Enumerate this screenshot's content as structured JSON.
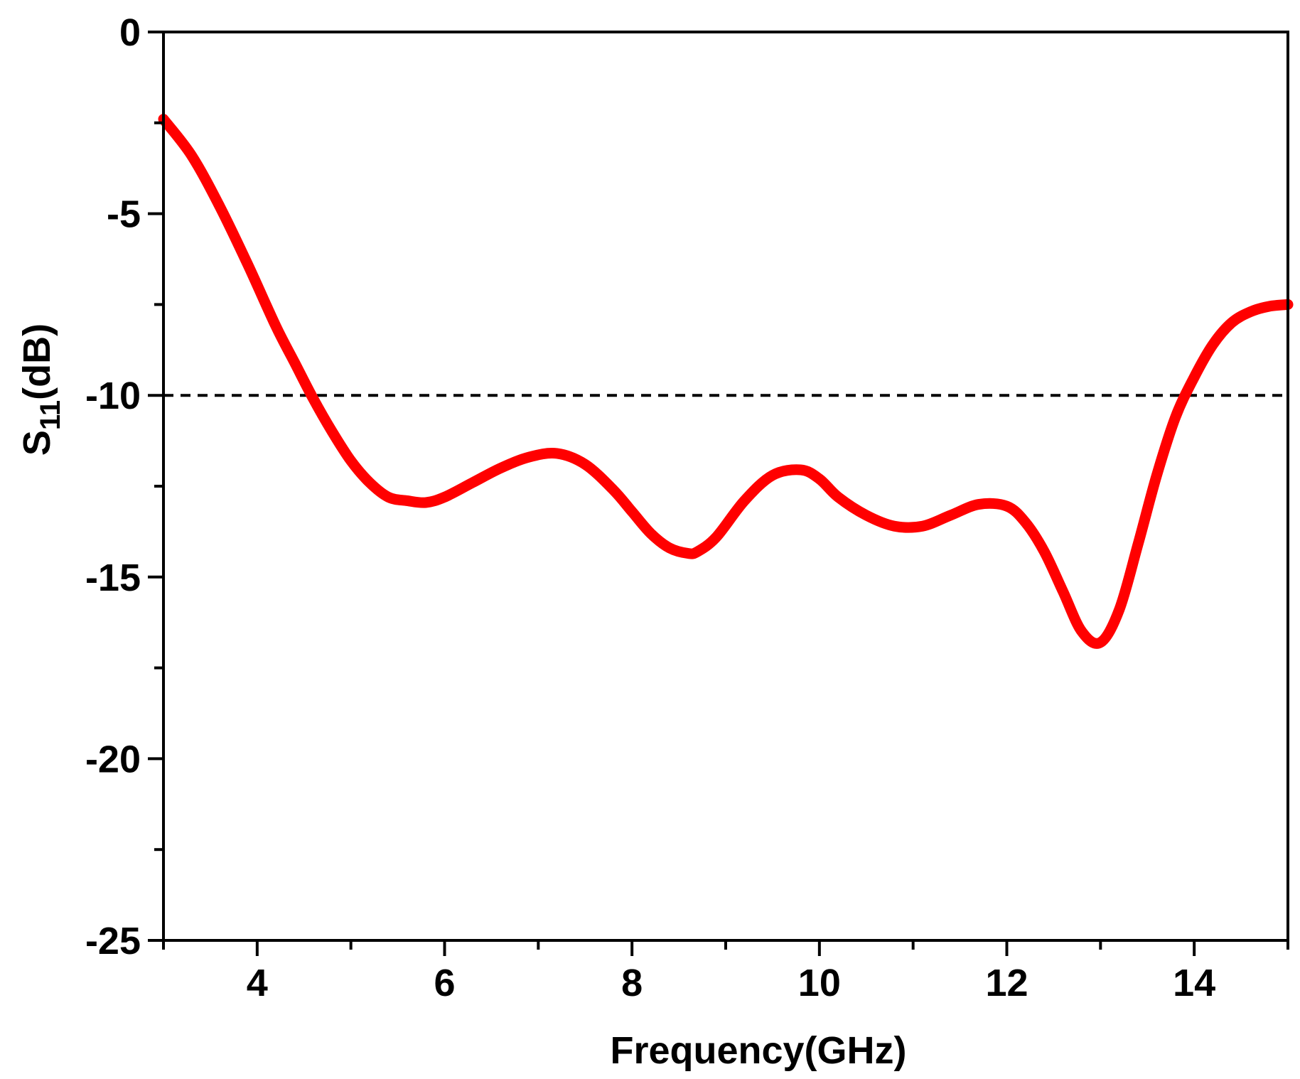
{
  "chart_data": {
    "type": "line",
    "title": "",
    "xlabel": "Frequency(GHz)",
    "ylabel": {
      "main": "S",
      "sub": "11",
      "unit": "(dB)"
    },
    "xlim": [
      3,
      15
    ],
    "ylim": [
      -25,
      0
    ],
    "x_ticks": [
      4,
      6,
      8,
      10,
      12,
      14
    ],
    "y_ticks": [
      0,
      -5,
      -10,
      -15,
      -20,
      -25
    ],
    "x_minor_step": 1,
    "y_minor_step": 2.5,
    "grid": false,
    "series": [
      {
        "color": "#ff0000",
        "x": [
          3.0,
          3.3,
          3.6,
          3.9,
          4.2,
          4.4,
          4.6,
          4.8,
          5.0,
          5.2,
          5.4,
          5.6,
          5.8,
          6.0,
          6.3,
          6.6,
          6.9,
          7.2,
          7.5,
          7.8,
          8.0,
          8.2,
          8.4,
          8.6,
          8.7,
          8.9,
          9.2,
          9.5,
          9.8,
          10.0,
          10.2,
          10.5,
          10.8,
          11.1,
          11.4,
          11.7,
          12.0,
          12.2,
          12.4,
          12.6,
          12.8,
          13.0,
          13.2,
          13.4,
          13.6,
          13.8,
          14.0,
          14.2,
          14.4,
          14.6,
          14.8,
          15.0
        ],
        "y": [
          -2.4,
          -3.4,
          -4.8,
          -6.4,
          -8.1,
          -9.1,
          -10.1,
          -11.0,
          -11.8,
          -12.4,
          -12.8,
          -12.9,
          -12.95,
          -12.8,
          -12.4,
          -12.0,
          -11.7,
          -11.6,
          -11.9,
          -12.6,
          -13.2,
          -13.8,
          -14.2,
          -14.35,
          -14.3,
          -13.9,
          -12.9,
          -12.2,
          -12.05,
          -12.3,
          -12.8,
          -13.3,
          -13.6,
          -13.6,
          -13.3,
          -13.0,
          -13.05,
          -13.5,
          -14.3,
          -15.4,
          -16.5,
          -16.8,
          -15.9,
          -14.1,
          -12.2,
          -10.6,
          -9.5,
          -8.6,
          -8.0,
          -7.7,
          -7.55,
          -7.5
        ]
      }
    ],
    "reference_line": {
      "y": -10,
      "style": "dashed",
      "color": "#000000"
    }
  }
}
